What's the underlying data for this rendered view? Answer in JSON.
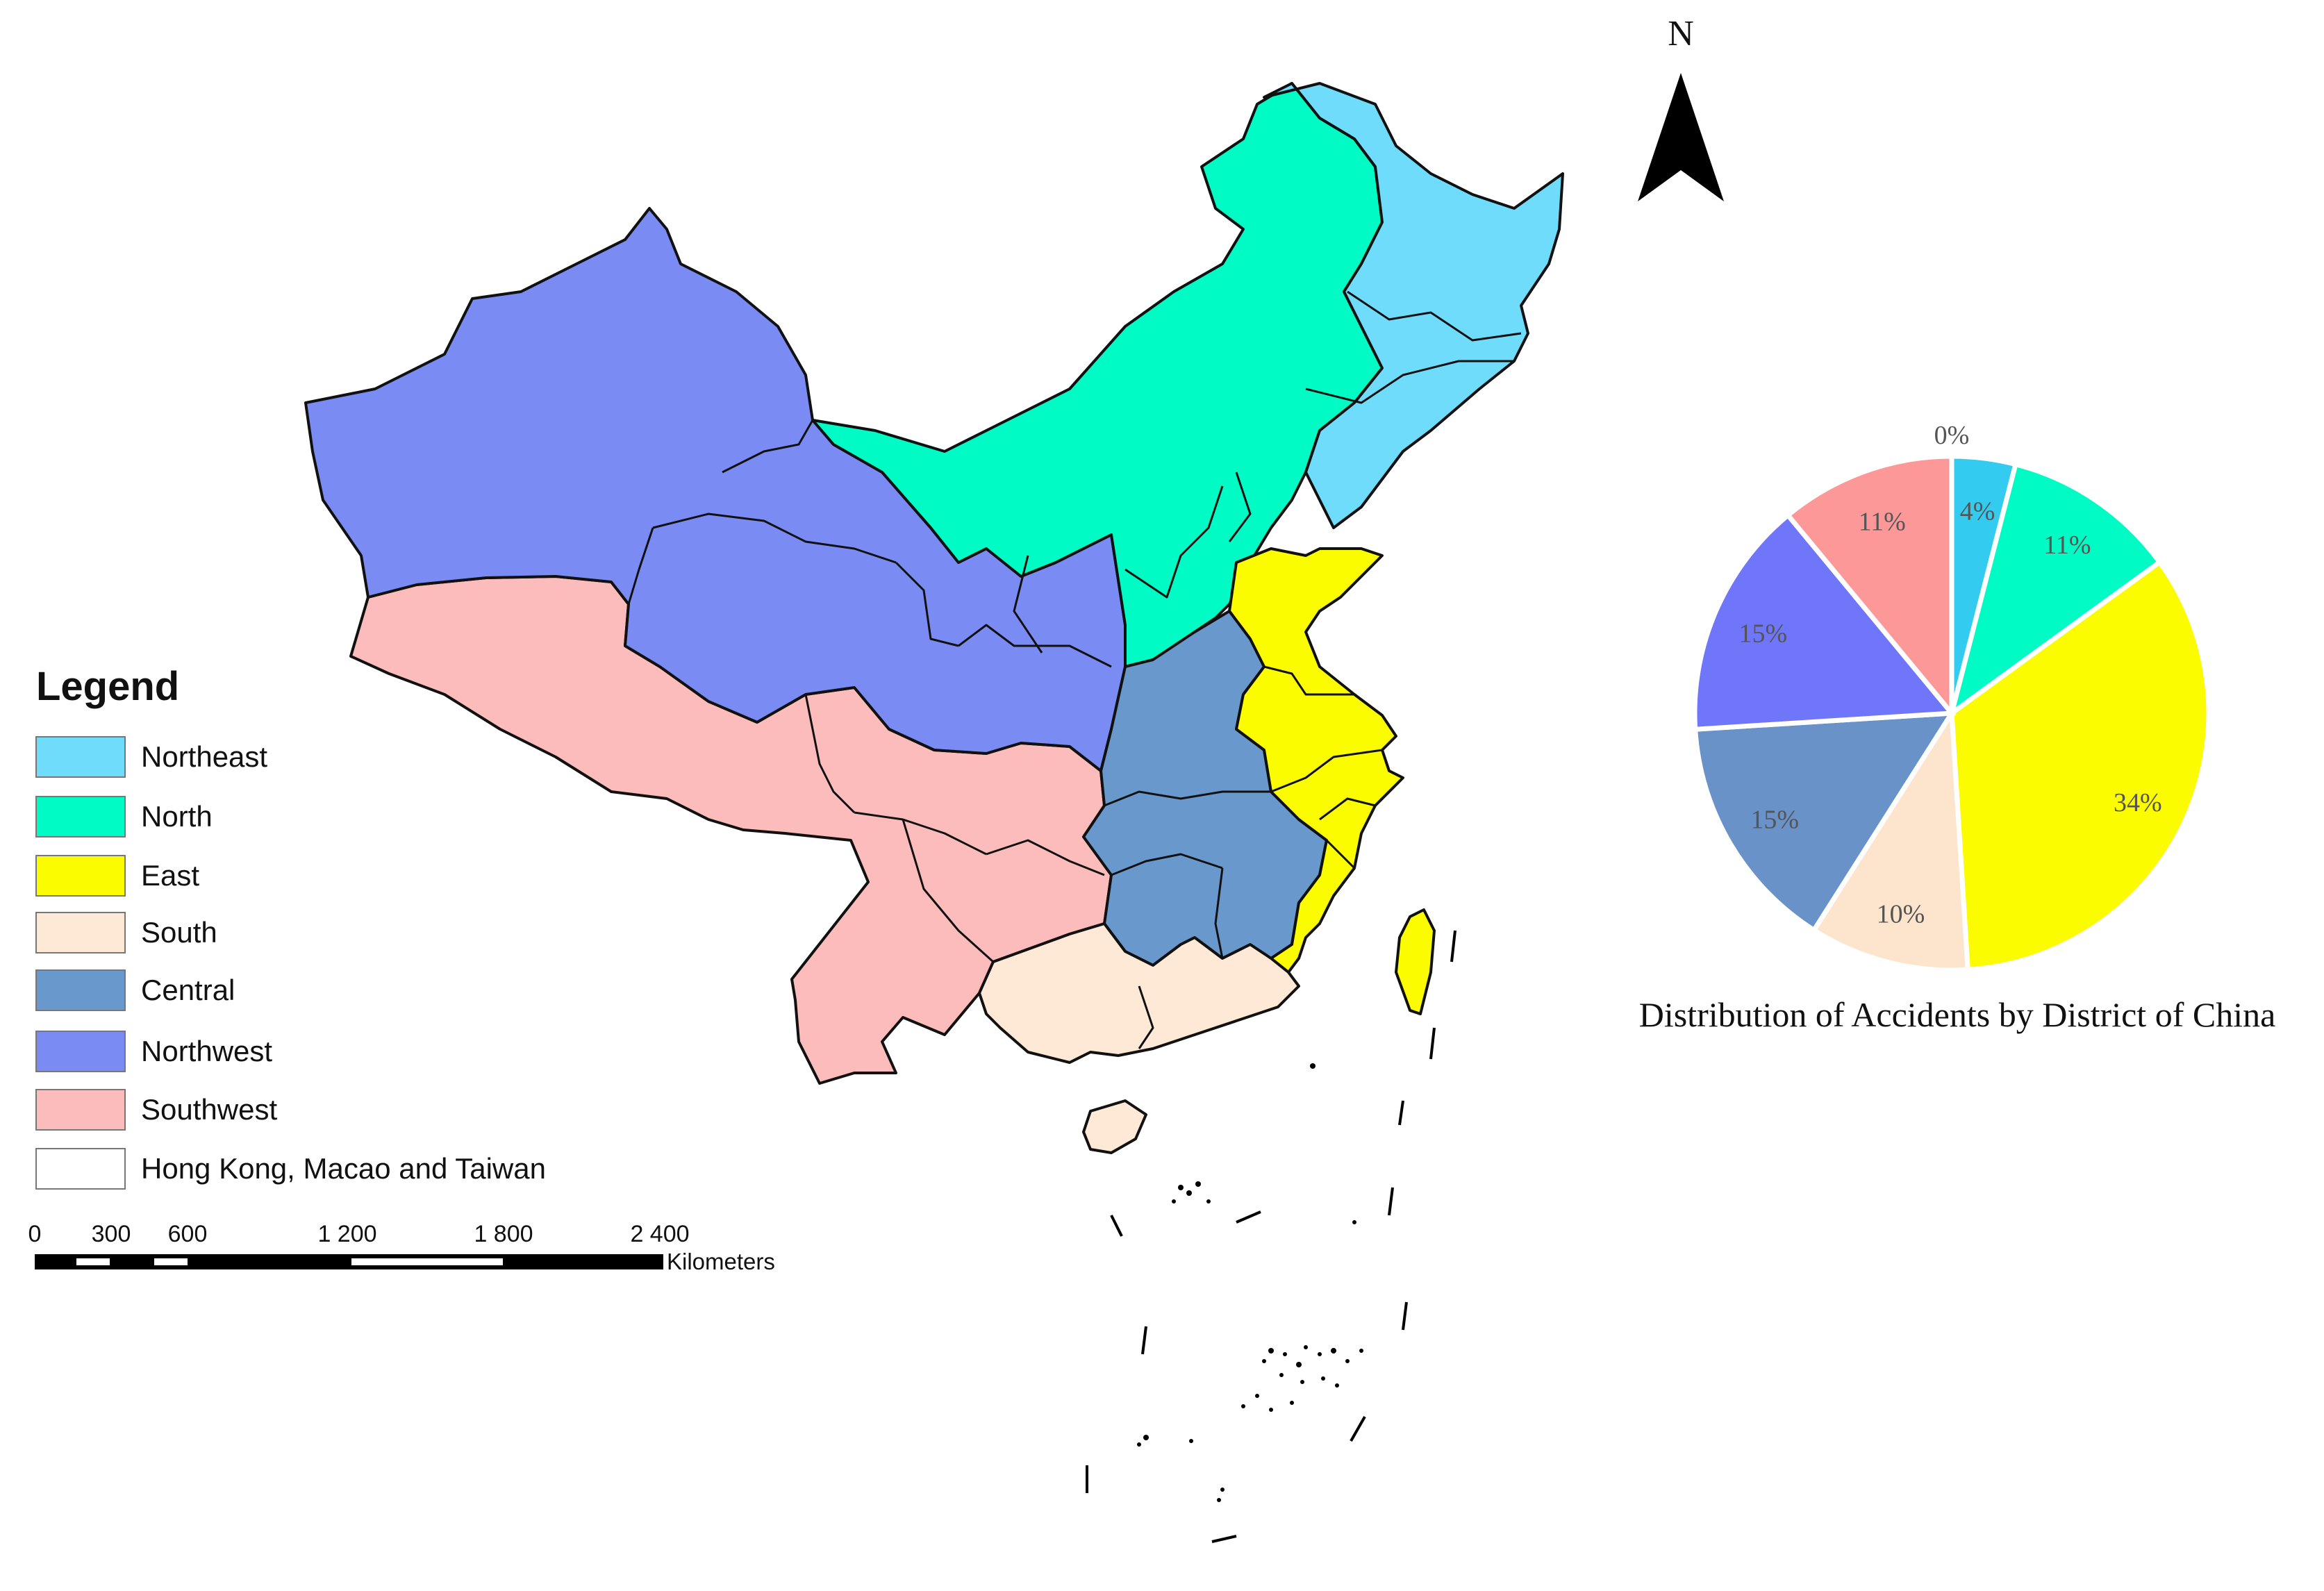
{
  "north_arrow": {
    "label": "N",
    "icon": "north-arrow-icon"
  },
  "legend": {
    "title": "Legend",
    "items": [
      {
        "label": "Northeast",
        "color": "#70dcfc"
      },
      {
        "label": "North",
        "color": "#00fcc4"
      },
      {
        "label": "East",
        "color": "#fcfc00"
      },
      {
        "label": "South",
        "color": "#fde9d6"
      },
      {
        "label": "Central",
        "color": "#6898cc"
      },
      {
        "label": "Northwest",
        "color": "#7a8cf4"
      },
      {
        "label": "Southwest",
        "color": "#fcbcbc"
      },
      {
        "label": "Hong Kong, Macao and Taiwan",
        "color": "#ffffff"
      }
    ]
  },
  "scale_bar": {
    "ticks": [
      "0",
      "300",
      "600",
      "1 200",
      "1 800",
      "2 400"
    ],
    "unit": "Kilometers"
  },
  "chart_data": {
    "type": "pie",
    "title": "Distribution of Accidents by District of China",
    "slices": [
      {
        "label": "0%",
        "value": 0,
        "color": "#ffffff"
      },
      {
        "label": "4%",
        "value": 4,
        "color": "#33ccf0"
      },
      {
        "label": "11%",
        "value": 11,
        "color": "#00fcc4"
      },
      {
        "label": "34%",
        "value": 34,
        "color": "#fcfc00"
      },
      {
        "label": "10%",
        "value": 10,
        "color": "#fde4cc"
      },
      {
        "label": "15%",
        "value": 15,
        "color": "#6892c8"
      },
      {
        "label": "15%",
        "value": 15,
        "color": "#6f76fa"
      },
      {
        "label": "11%",
        "value": 11,
        "color": "#fc9898"
      }
    ]
  }
}
